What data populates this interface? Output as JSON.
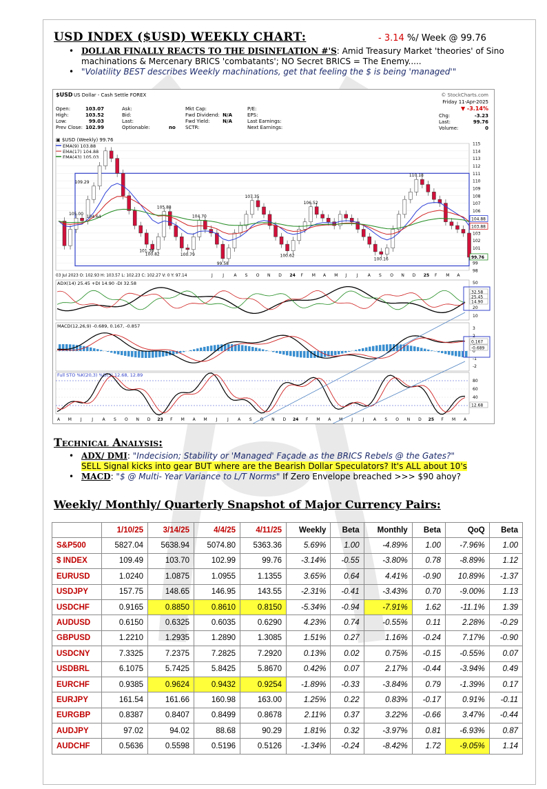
{
  "header": {
    "title": "USD INDEX ($USD) WEEKLY CHART:",
    "change_value": "- 3.14",
    "change_suffix": " %/ Week @ 99.76"
  },
  "bullets": [
    {
      "lead": "DOLLAR FINALLY REACTS TO THE DISINFLATION #'S",
      "text": ": Amid Treasury Market 'theories' of Sino machinations & Mercenary BRICS 'combatants'; NO Secret BRICS = The Enemy....."
    },
    {
      "quote": "\"Volatility BEST describes Weekly machinations, get that feeling the $ is being 'managed'\""
    }
  ],
  "chart": {
    "symbol": "$USD",
    "name": "US Dollar - Cash Settle",
    "exchange": "FOREX",
    "provider": "© StockCharts.com",
    "date": "Friday  11-Apr-2025",
    "pct_change": "-3.14%",
    "chg_label": "Chg:",
    "chg_value": "-3.23",
    "last_label": "Last:",
    "last_value": "99.76",
    "volume_label": "Volume:",
    "volume_value": "0",
    "stats_left": [
      [
        "Open:",
        "103.07"
      ],
      [
        "High:",
        "103.52"
      ],
      [
        "Low:",
        "99.03"
      ],
      [
        "Prev Close:",
        "102.99"
      ]
    ],
    "stats_mid": [
      "Ask:",
      "Bid:",
      "Last:",
      "Optionable:"
    ],
    "optionable_value": "no",
    "stats_fund": [
      [
        "Mkt Cap:",
        ""
      ],
      [
        "Fwd Dividend:",
        "N/A"
      ],
      [
        "Fwd Yield:",
        "N/A"
      ],
      [
        "SCTR:",
        ""
      ]
    ],
    "stats_right": [
      "P/E:",
      "EPS:",
      "Last Earnings:",
      "Next Earnings:"
    ],
    "legend_main": "$USD (Weekly) 99.76",
    "legend_ema": [
      "EMA(9) 103.88",
      "EMA(17) 104.88",
      "EMA(43) 105.03"
    ],
    "ema_colors": [
      "#2b3fd6",
      "#d02020",
      "#1f8a1f"
    ],
    "price_ticks": [
      "115",
      "114",
      "113",
      "112",
      "111",
      "110",
      "109",
      "108",
      "107",
      "106",
      "105",
      "104",
      "103",
      "102",
      "101",
      "100",
      "99",
      "98"
    ],
    "price_tags": [
      "104.88",
      "103.88",
      "99.76"
    ],
    "peak_labels": [
      "105.00",
      "109.29",
      "104.64",
      "101.30",
      "100.82",
      "105.88",
      "100.79",
      "104.70",
      "99.58",
      "107.35",
      "100.62",
      "106.52",
      "110.18",
      "100.16"
    ],
    "ohlc_line": "03 Jul 2023  O: 102.93  H: 103.57  L: 102.23  C: 102.27  V: 0  Y: 97.14",
    "x_labels_main": [
      "J",
      "J",
      "A",
      "S",
      "O",
      "N",
      "D",
      "24",
      "F",
      "M",
      "A",
      "M",
      "J",
      "J",
      "A",
      "S",
      "O",
      "N",
      "D",
      "25",
      "F",
      "M",
      "A"
    ],
    "adx_legend": "ADX(14) 25.45  +DI 14.90  -DI 32.58",
    "adx_ticks": [
      "50",
      "40",
      "30",
      "20",
      "10"
    ],
    "adx_tags": [
      "32.58",
      "25.45",
      "14.90"
    ],
    "macd_legend": "MACD(12,26,9) -0.689, 0.167, -0.857",
    "macd_ticks": [
      "3",
      "2",
      "1",
      "0",
      "-1",
      "-2"
    ],
    "macd_tags": [
      "0.167",
      "-0.689"
    ],
    "sto_legend": "Full STO %K(20,3) %D(3) 12.68, 12.89",
    "sto_ticks": [
      "80",
      "60",
      "40",
      "20"
    ],
    "sto_tag": "12.68",
    "x_labels_bottom": [
      "A",
      "M",
      "J",
      "J",
      "A",
      "S",
      "O",
      "N",
      "D",
      "23",
      "F",
      "M",
      "A",
      "M",
      "J",
      "J",
      "A",
      "S",
      "O",
      "N",
      "D",
      "24",
      "F",
      "M",
      "A",
      "M",
      "J",
      "J",
      "A",
      "S",
      "O",
      "N",
      "D",
      "25",
      "F",
      "M",
      "A"
    ]
  },
  "technical": {
    "title": "Technical Analysis",
    "bullets": [
      {
        "lead": "ADX/ DMI",
        "quote": "\"Indecision; Stability or 'Managed' Façade as the BRICS Rebels @ the Gates?\"",
        "highlight": "SELL Signal kicks into gear BUT where are the Bearish Dollar Speculators? It's ALL about 10's"
      },
      {
        "lead": "MACD",
        "quote": "\"$ @ Multi- Year Variance to L/T Norms\"",
        "text": " If Zero Envelope breached >>> $90 ahoy?"
      }
    ]
  },
  "snapshot": {
    "title": "Weekly/ Monthly/ Quarterly Snapshot of Major Currency Pairs:",
    "headers": [
      "",
      "1/10/25",
      "3/14/25",
      "4/4/25",
      "4/11/25",
      "Weekly",
      "Beta",
      "Monthly",
      "Beta",
      "QoQ",
      "Beta"
    ],
    "rows": [
      [
        "S&P500",
        "5827.04",
        "5638.94",
        "5074.80",
        "5363.36",
        "5.69%",
        "1.00",
        "-4.89%",
        "1.00",
        "-7.96%",
        "1.00"
      ],
      [
        "$ INDEX",
        "109.49",
        "103.70",
        "102.99",
        "99.76",
        "-3.14%",
        "-0.55",
        "-3.80%",
        "0.78",
        "-8.89%",
        "1.12"
      ],
      [
        "EURUSD",
        "1.0240",
        "1.0875",
        "1.0955",
        "1.1355",
        "3.65%",
        "0.64",
        "4.41%",
        "-0.90",
        "10.89%",
        "-1.37"
      ],
      [
        "USDJPY",
        "157.75",
        "148.65",
        "146.95",
        "143.55",
        "-2.31%",
        "-0.41",
        "-3.43%",
        "0.70",
        "-9.00%",
        "1.13"
      ],
      [
        "USDCHF",
        "0.9165",
        "0.8850",
        "0.8610",
        "0.8150",
        "-5.34%",
        "-0.94",
        "-7.91%",
        "1.62",
        "-11.1%",
        "1.39"
      ],
      [
        "AUDUSD",
        "0.6150",
        "0.6325",
        "0.6035",
        "0.6290",
        "4.23%",
        "0.74",
        "-0.55%",
        "0.11",
        "2.28%",
        "-0.29"
      ],
      [
        "GBPUSD",
        "1.2210",
        "1.2935",
        "1.2890",
        "1.3085",
        "1.51%",
        "0.27",
        "1.16%",
        "-0.24",
        "7.17%",
        "-0.90"
      ],
      [
        "USDCNY",
        "7.3325",
        "7.2375",
        "7.2825",
        "7.2920",
        "0.13%",
        "0.02",
        "0.75%",
        "-0.15",
        "-0.55%",
        "0.07"
      ],
      [
        "USDBRL",
        "6.1075",
        "5.7425",
        "5.8425",
        "5.8670",
        "0.42%",
        "0.07",
        "2.17%",
        "-0.44",
        "-3.94%",
        "0.49"
      ],
      [
        "EURCHF",
        "0.9385",
        "0.9624",
        "0.9432",
        "0.9254",
        "-1.89%",
        "-0.33",
        "-3.84%",
        "0.79",
        "-1.39%",
        "0.17"
      ],
      [
        "EURJPY",
        "161.54",
        "161.66",
        "160.98",
        "163.00",
        "1.25%",
        "0.22",
        "0.83%",
        "-0.17",
        "0.91%",
        "-0.11"
      ],
      [
        "EURGBP",
        "0.8387",
        "0.8407",
        "0.8499",
        "0.8678",
        "2.11%",
        "0.37",
        "3.22%",
        "-0.66",
        "3.47%",
        "-0.44"
      ],
      [
        "AUDJPY",
        "97.02",
        "94.02",
        "88.68",
        "90.29",
        "1.81%",
        "0.32",
        "-3.97%",
        "0.81",
        "-6.93%",
        "0.87"
      ],
      [
        "AUDCHF",
        "0.5636",
        "0.5598",
        "0.5196",
        "0.5126",
        "-1.34%",
        "-0.24",
        "-8.42%",
        "1.72",
        "-9.05%",
        "1.14"
      ]
    ],
    "highlights": [
      [
        4,
        2
      ],
      [
        4,
        3
      ],
      [
        4,
        4
      ],
      [
        4,
        7
      ],
      [
        9,
        2
      ],
      [
        9,
        3
      ],
      [
        9,
        4
      ],
      [
        13,
        9
      ]
    ]
  },
  "chart_data": {
    "type": "line",
    "title": "$USD US Dollar - Cash Settle FOREX",
    "series": [
      {
        "name": "$USD (Weekly) 99.76",
        "values": [
          104.6,
          101.3,
          103.5,
          105.0,
          104.64,
          107.5,
          109.29,
          112.0,
          114.0,
          113.0,
          111.0,
          108.0,
          106.0,
          104.0,
          103.0,
          101.5,
          100.82,
          102.5,
          105.88,
          104.0,
          102.5,
          101.0,
          100.79,
          102.5,
          104.7,
          103.5,
          103.0,
          101.5,
          99.58,
          101.0,
          103.0,
          104.0,
          105.5,
          107.35,
          106.5,
          105.5,
          104.0,
          102.5,
          101.5,
          100.62,
          102.0,
          103.5,
          104.5,
          106.52,
          105.5,
          105.0,
          104.5,
          104.0,
          105.5,
          105.0,
          104.5,
          103.5,
          102.5,
          101.5,
          100.5,
          100.16,
          101.0,
          103.5,
          105.5,
          107.5,
          108.5,
          110.18,
          109.5,
          108.5,
          107.5,
          107.0,
          104.5,
          104.0,
          103.5,
          102.99,
          99.76
        ]
      },
      {
        "name": "EMA(9) 103.88",
        "values": []
      },
      {
        "name": "EMA(17) 104.88",
        "values": []
      },
      {
        "name": "EMA(43) 105.03",
        "values": []
      }
    ],
    "ylim": [
      98,
      115
    ],
    "ylabel": "",
    "xlabel": ""
  }
}
